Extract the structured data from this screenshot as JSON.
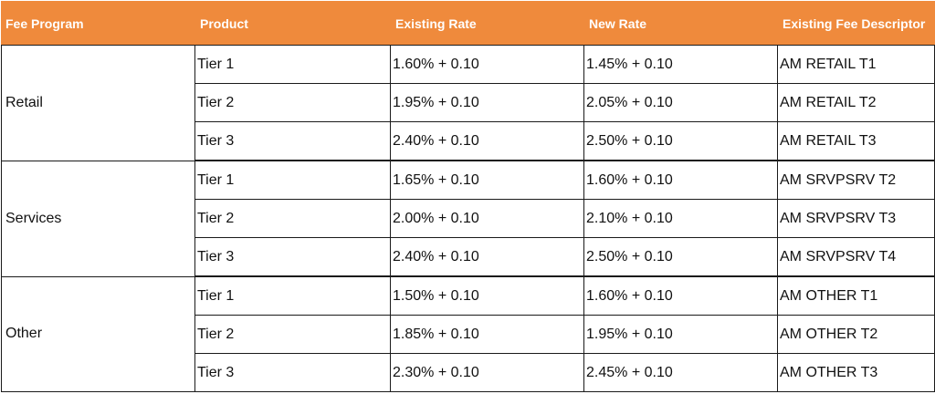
{
  "headers": [
    "Fee Program",
    "Product",
    "Existing Rate",
    "New Rate",
    "Existing Fee Descriptor"
  ],
  "groups": [
    {
      "program": "Retail",
      "rows": [
        {
          "product": "Tier 1",
          "existing_rate": "1.60% + 0.10",
          "new_rate": "1.45% + 0.10",
          "descriptor": "AM RETAIL T1"
        },
        {
          "product": "Tier 2",
          "existing_rate": "1.95% + 0.10",
          "new_rate": "2.05% + 0.10",
          "descriptor": "AM RETAIL T2"
        },
        {
          "product": "Tier 3",
          "existing_rate": "2.40% + 0.10",
          "new_rate": "2.50% + 0.10",
          "descriptor": "AM RETAIL T3"
        }
      ]
    },
    {
      "program": "Services",
      "rows": [
        {
          "product": "Tier 1",
          "existing_rate": "1.65% + 0.10",
          "new_rate": "1.60% + 0.10",
          "descriptor": "AM SRVPSRV T2"
        },
        {
          "product": "Tier 2",
          "existing_rate": "2.00% + 0.10",
          "new_rate": "2.10% + 0.10",
          "descriptor": "AM SRVPSRV T3"
        },
        {
          "product": "Tier 3",
          "existing_rate": "2.40% + 0.10",
          "new_rate": "2.50% + 0.10",
          "descriptor": "AM SRVPSRV T4"
        }
      ]
    },
    {
      "program": "Other",
      "rows": [
        {
          "product": "Tier 1",
          "existing_rate": "1.50% + 0.10",
          "new_rate": "1.60% + 0.10",
          "descriptor": "AM OTHER T1"
        },
        {
          "product": "Tier 2",
          "existing_rate": "1.85% + 0.10",
          "new_rate": "1.95% + 0.10",
          "descriptor": "AM OTHER T2"
        },
        {
          "product": "Tier 3",
          "existing_rate": "2.30% + 0.10",
          "new_rate": "2.45% + 0.10",
          "descriptor": "AM OTHER T3"
        }
      ]
    }
  ],
  "colors": {
    "header_bg": "#ef8a3c",
    "header_text": "#ffffff",
    "border": "#1a1a1a"
  }
}
